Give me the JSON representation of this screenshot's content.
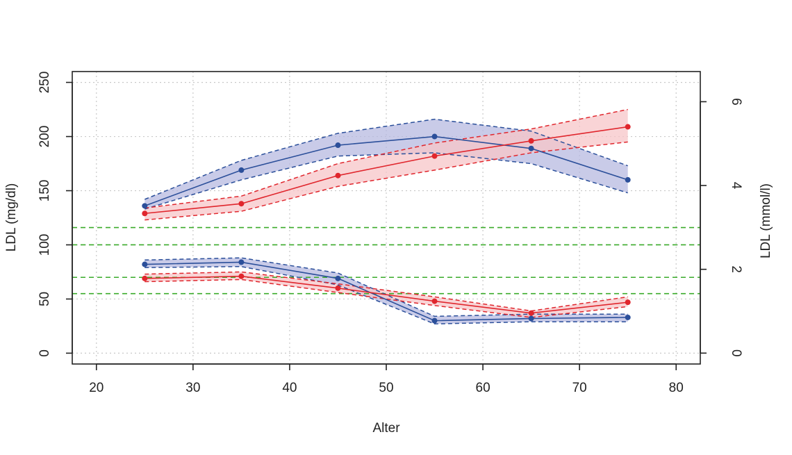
{
  "chart_data": {
    "type": "line",
    "xlabel": "Alter",
    "ylabel": "LDL (mg/dl)",
    "ylabel_right": "LDL (mmol/l)",
    "xlim": [
      17.5,
      82.5
    ],
    "ylim": [
      -10,
      260
    ],
    "ylim_right_mmol": [
      -0.26,
      6.72
    ],
    "x_ticks": [
      "20",
      "30",
      "40",
      "50",
      "60",
      "70",
      "80"
    ],
    "y_ticks": [
      "0",
      "50",
      "100",
      "150",
      "200",
      "250"
    ],
    "y_ticks_right": [
      "0",
      "2",
      "4",
      "6"
    ],
    "grid": true,
    "x": [
      25,
      35,
      45,
      55,
      65,
      75
    ],
    "reference_lines": [
      {
        "y": 116,
        "color": "#3aab2a"
      },
      {
        "y": 100,
        "color": "#3aab2a"
      },
      {
        "y": 70,
        "color": "#3aab2a"
      },
      {
        "y": 55,
        "color": "#3aab2a"
      }
    ],
    "series": [
      {
        "color": "#2b4f9a",
        "band_color": "#b7b9e0",
        "values": [
          136,
          169,
          192,
          200,
          189,
          160
        ],
        "lower": [
          133,
          160,
          182,
          185,
          175,
          148
        ],
        "upper": [
          142,
          178,
          203,
          216,
          205,
          173
        ]
      },
      {
        "color": "#e0262d",
        "band_color": "#f7c5c8",
        "values": [
          129,
          138,
          164,
          182,
          196,
          209
        ],
        "lower": [
          123,
          131,
          154,
          169,
          185,
          195
        ],
        "upper": [
          134,
          145,
          175,
          194,
          207,
          225
        ]
      },
      {
        "color": "#2b4f9a",
        "band_color": "#b7b9e0",
        "values": [
          82,
          84,
          69,
          30,
          32,
          33
        ],
        "lower": [
          79,
          80,
          63,
          27,
          29,
          29
        ],
        "upper": [
          86,
          88,
          74,
          34,
          36,
          36
        ]
      },
      {
        "color": "#e0262d",
        "band_color": "#f7c5c8",
        "values": [
          69,
          71,
          60,
          48,
          37,
          47
        ],
        "lower": [
          66,
          68,
          56,
          44,
          33,
          43
        ],
        "upper": [
          73,
          75,
          64,
          52,
          39,
          52
        ]
      }
    ]
  }
}
